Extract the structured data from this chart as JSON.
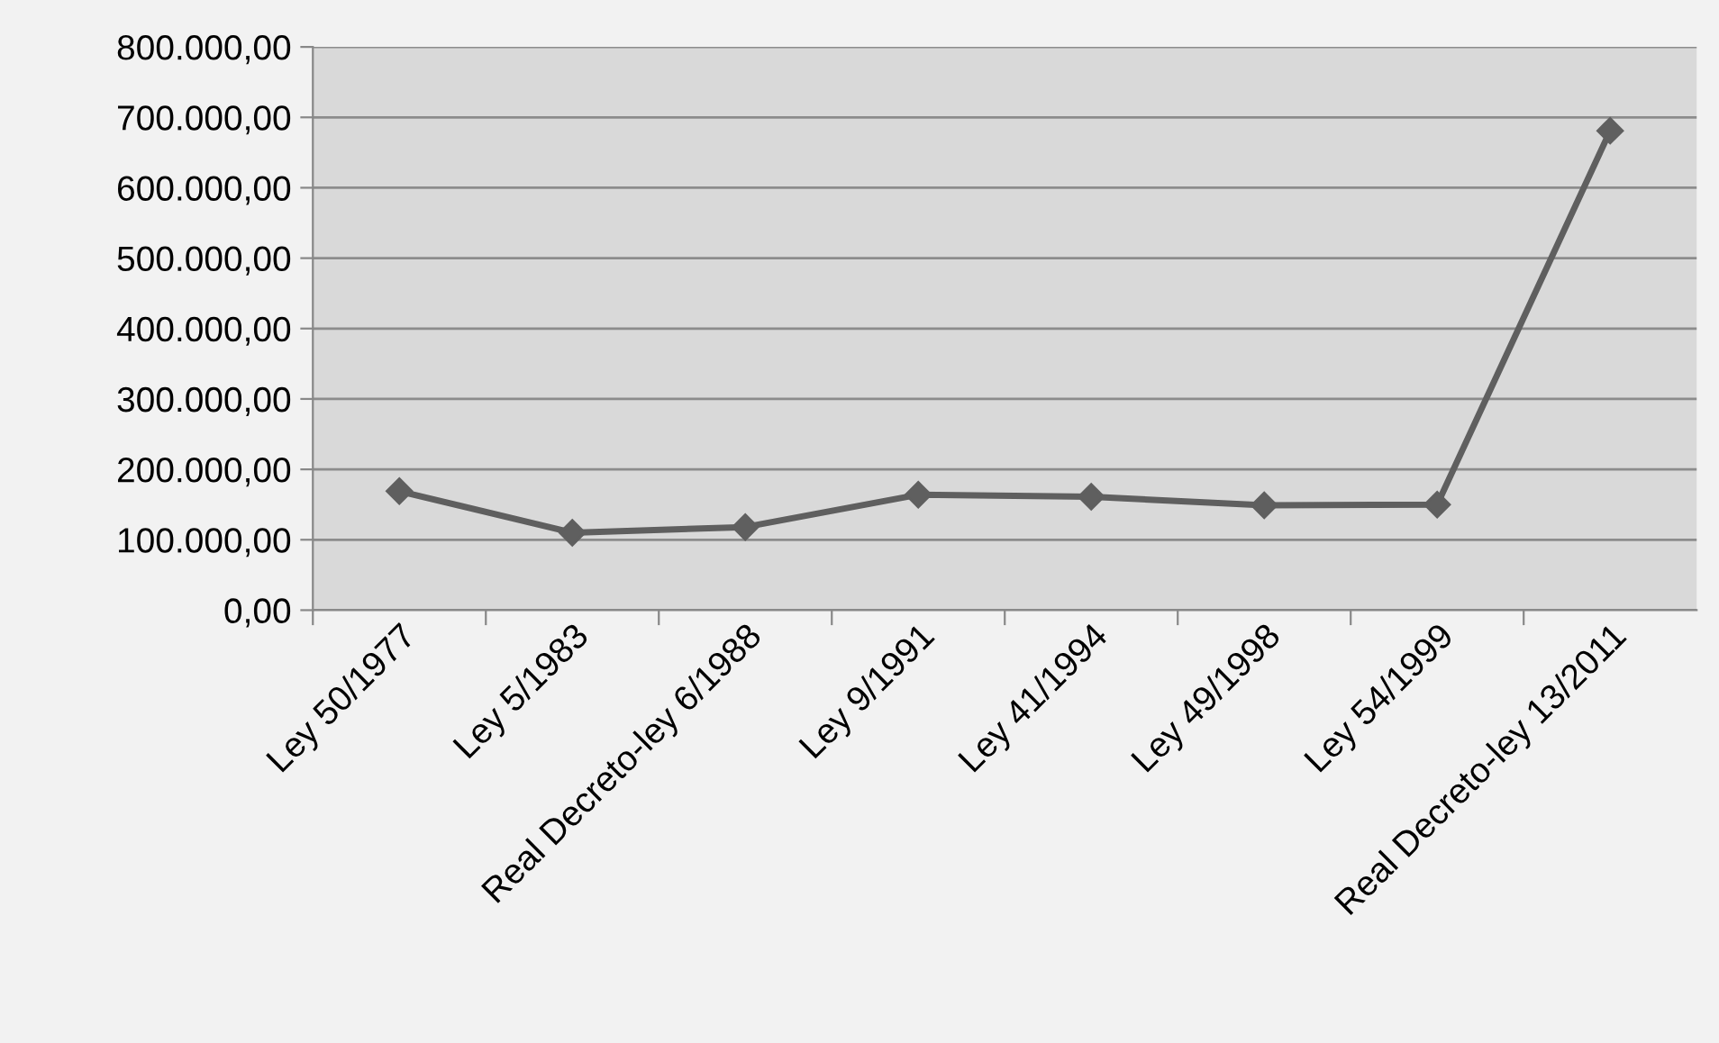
{
  "chart_data": {
    "type": "line",
    "categories": [
      "Ley 50/1977",
      "Ley 5/1983",
      "Real Decreto-ley 6/1988",
      "Ley 9/1991",
      "Ley 41/1994",
      "Ley 49/1998",
      "Ley 54/1999",
      "Real Decreto-ley 13/2011"
    ],
    "series": [
      {
        "color": "#5f5f5f",
        "values": [
          169000,
          110000,
          118000,
          164000,
          161000,
          149000,
          150000,
          681000
        ]
      }
    ],
    "ylim": [
      0,
      800000
    ],
    "yticks": [
      {
        "value": 0,
        "label": "0,00"
      },
      {
        "value": 100000,
        "label": "100.000,00"
      },
      {
        "value": 200000,
        "label": "200.000,00"
      },
      {
        "value": 300000,
        "label": "300.000,00"
      },
      {
        "value": 400000,
        "label": "400.000,00"
      },
      {
        "value": 500000,
        "label": "500.000,00"
      },
      {
        "value": 600000,
        "label": "600.000,00"
      },
      {
        "value": 700000,
        "label": "700.000,00"
      },
      {
        "value": 800000,
        "label": "800.000,00"
      }
    ],
    "grid": "y",
    "marker": "diamond",
    "line_style": "solid"
  }
}
